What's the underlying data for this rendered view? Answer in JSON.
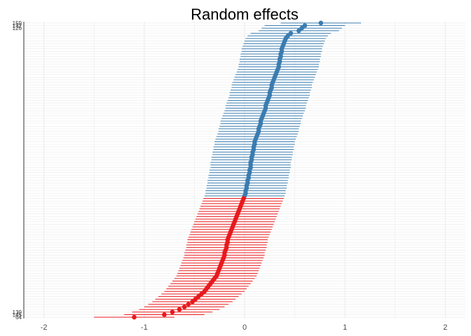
{
  "chart_data": {
    "type": "scatter",
    "title": "Random effects",
    "xlim": [
      -2.2,
      2.2
    ],
    "x_ticks": [
      -2,
      -1,
      0,
      1,
      2
    ],
    "x_tick_labels": [
      "-2",
      "-1",
      "0",
      "1",
      "2"
    ],
    "grid": true,
    "colors": {
      "positive": "#3A7CB0",
      "negative": "#E8191C",
      "grid": "#ebebeb",
      "axis": "#333333"
    },
    "y_tick_labels_top": [
      "159",
      "132",
      "126"
    ],
    "y_tick_labels_bottom": [
      "139",
      "145",
      "64"
    ],
    "estimates": [
      0.76,
      0.6,
      0.57,
      0.54,
      0.46,
      0.43,
      0.41,
      0.4,
      0.39,
      0.38,
      0.37,
      0.37,
      0.36,
      0.36,
      0.35,
      0.35,
      0.34,
      0.34,
      0.33,
      0.32,
      0.31,
      0.3,
      0.29,
      0.28,
      0.27,
      0.27,
      0.26,
      0.25,
      0.25,
      0.24,
      0.23,
      0.22,
      0.21,
      0.21,
      0.2,
      0.19,
      0.18,
      0.17,
      0.16,
      0.16,
      0.15,
      0.14,
      0.14,
      0.13,
      0.12,
      0.11,
      0.1,
      0.1,
      0.09,
      0.09,
      0.08,
      0.08,
      0.07,
      0.07,
      0.06,
      0.06,
      0.06,
      0.05,
      0.05,
      0.04,
      0.04,
      0.03,
      0.03,
      0.02,
      0.02,
      0.01,
      0.01,
      0.0,
      -0.01,
      -0.02,
      -0.03,
      -0.04,
      -0.05,
      -0.06,
      -0.07,
      -0.08,
      -0.09,
      -0.1,
      -0.11,
      -0.12,
      -0.13,
      -0.14,
      -0.15,
      -0.16,
      -0.17,
      -0.17,
      -0.18,
      -0.18,
      -0.19,
      -0.2,
      -0.2,
      -0.21,
      -0.22,
      -0.23,
      -0.24,
      -0.25,
      -0.26,
      -0.27,
      -0.28,
      -0.3,
      -0.32,
      -0.34,
      -0.36,
      -0.38,
      -0.4,
      -0.43,
      -0.46,
      -0.49,
      -0.52,
      -0.56,
      -0.6,
      -0.65,
      -0.72,
      -0.8,
      -1.1
    ],
    "ci_half_width": 0.4
  }
}
